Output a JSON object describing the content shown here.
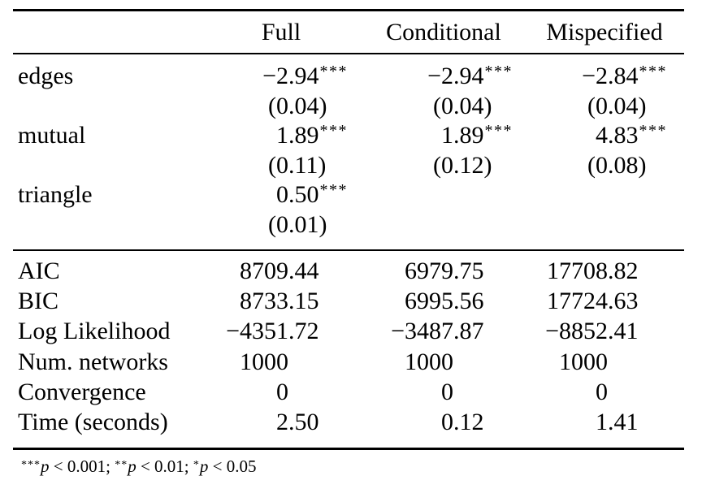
{
  "table": {
    "header": {
      "columns": [
        "Full",
        "Conditional",
        "Mispecified"
      ]
    },
    "coefficients": [
      {
        "label": "edges",
        "estimates": [
          "−2.94",
          "−2.94",
          "−2.84"
        ],
        "stars": [
          "***",
          "***",
          "***"
        ],
        "std_errors": [
          "(0.04)",
          "(0.04)",
          "(0.04)"
        ]
      },
      {
        "label": "mutual",
        "estimates": [
          "1.89",
          "1.89",
          "4.83"
        ],
        "stars": [
          "***",
          "***",
          "***"
        ],
        "std_errors": [
          "(0.11)",
          "(0.12)",
          "(0.08)"
        ]
      },
      {
        "label": "triangle",
        "estimates": [
          "0.50",
          "",
          ""
        ],
        "stars": [
          "***",
          "",
          ""
        ],
        "std_errors": [
          "(0.01)",
          "",
          ""
        ]
      }
    ],
    "gof": [
      {
        "label": "AIC",
        "values": [
          "8709.44",
          "6979.75",
          "17708.82"
        ]
      },
      {
        "label": "BIC",
        "values": [
          "8733.15",
          "6995.56",
          "17724.63"
        ]
      },
      {
        "label": "Log Likelihood",
        "values": [
          "−4351.72",
          "−3487.87",
          "−8852.41"
        ]
      },
      {
        "label": "Num. networks",
        "values": [
          "1000",
          "1000",
          "1000"
        ]
      },
      {
        "label": "Convergence",
        "values": [
          "0",
          "0",
          "0"
        ]
      },
      {
        "label": "Time (seconds)",
        "values": [
          "2.50",
          "0.12",
          "1.41"
        ]
      }
    ],
    "footnote": {
      "parts": [
        {
          "stars": "***",
          "p": "p",
          "rest": " < 0.001; "
        },
        {
          "stars": "**",
          "p": "p",
          "rest": " < 0.01; "
        },
        {
          "stars": "*",
          "p": "p",
          "rest": " < 0.05"
        }
      ]
    }
  }
}
